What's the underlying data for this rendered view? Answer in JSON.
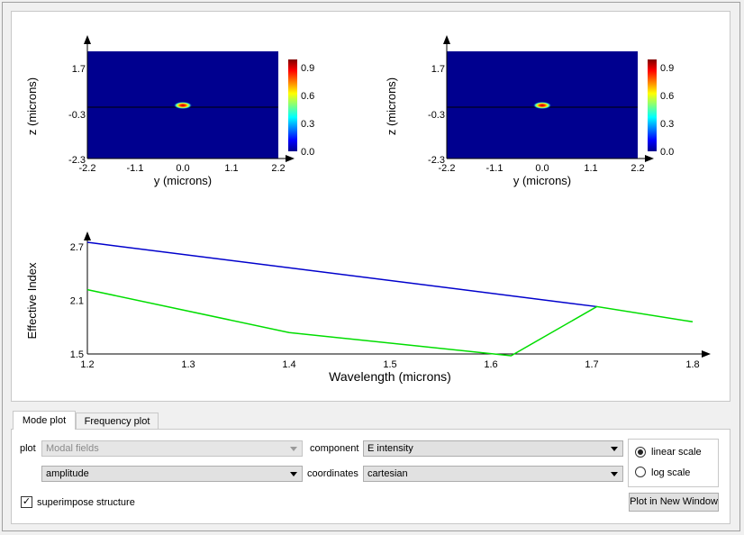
{
  "mode_plots": [
    {
      "ylabel": "z (microns)",
      "xlabel": "y (microns)",
      "xticks": [
        "-2.2",
        "-1.1",
        "0.0",
        "1.1",
        "2.2"
      ],
      "yticks": [
        "1.7",
        "-0.3",
        "-2.3"
      ],
      "colorbar_ticks": [
        "0.9",
        "0.6",
        "0.3",
        "0.0"
      ]
    },
    {
      "ylabel": "z (microns)",
      "xlabel": "y (microns)",
      "xticks": [
        "-2.2",
        "-1.1",
        "0.0",
        "1.1",
        "2.2"
      ],
      "yticks": [
        "1.7",
        "-0.3",
        "-2.3"
      ],
      "colorbar_ticks": [
        "0.9",
        "0.6",
        "0.3",
        "0.0"
      ]
    }
  ],
  "chart_data": {
    "type": "line",
    "xlabel": "Wavelength (microns)",
    "ylabel": "Effective Index",
    "xlim": [
      1.2,
      1.8
    ],
    "ylim": [
      1.5,
      2.7
    ],
    "xticks": [
      "1.2",
      "1.3",
      "1.4",
      "1.5",
      "1.6",
      "1.7",
      "1.8"
    ],
    "yticks": [
      "2.7",
      "2.1",
      "1.5"
    ],
    "series": [
      {
        "color": "#0000cc",
        "x": [
          1.2,
          1.705
        ],
        "y": [
          2.75,
          2.03
        ]
      },
      {
        "color": "#00dd00",
        "x": [
          1.2,
          1.4,
          1.62,
          1.705,
          1.8
        ],
        "y": [
          2.22,
          1.74,
          1.48,
          2.03,
          1.86
        ]
      }
    ]
  },
  "tabs": [
    "Mode plot",
    "Frequency plot"
  ],
  "controls": {
    "plot_label": "plot",
    "plot_value": "Modal fields",
    "amplitude_value": "amplitude",
    "component_label": "component",
    "component_value": "E intensity",
    "coordinates_label": "coordinates",
    "coordinates_value": "cartesian",
    "linear_label": "linear scale",
    "log_label": "log scale",
    "superimpose_label": "superimpose structure",
    "plot_button": "Plot in New Window"
  }
}
